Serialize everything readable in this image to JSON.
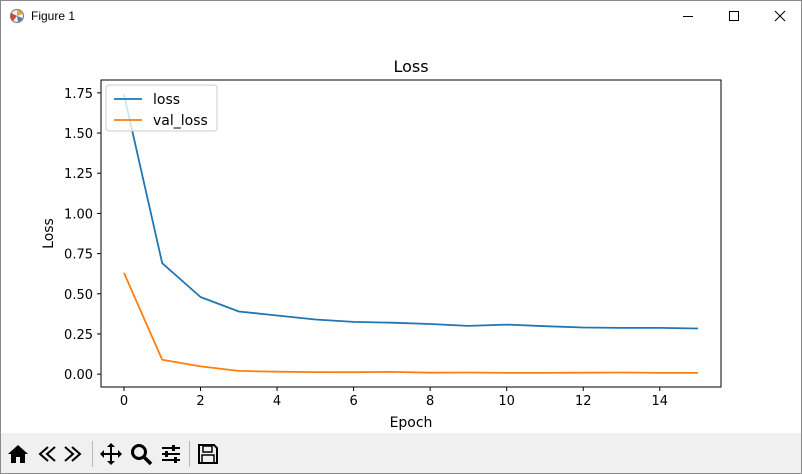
{
  "window": {
    "title": "Figure 1",
    "controls": {
      "minimize": "minimize-icon",
      "maximize": "maximize-icon",
      "close": "close-icon"
    }
  },
  "toolbar": {
    "buttons": [
      {
        "name": "home-button",
        "icon": "home-icon"
      },
      {
        "name": "back-button",
        "icon": "back-arrow-icon"
      },
      {
        "name": "forward-button",
        "icon": "forward-arrow-icon"
      },
      {
        "name": "pan-button",
        "icon": "move-icon"
      },
      {
        "name": "zoom-button",
        "icon": "zoom-icon"
      },
      {
        "name": "configure-subplots-button",
        "icon": "sliders-icon"
      },
      {
        "name": "save-button",
        "icon": "save-icon"
      }
    ]
  },
  "chart_data": {
    "type": "line",
    "title": "Loss",
    "xlabel": "Epoch",
    "ylabel": "Loss",
    "xlim": [
      -0.6,
      15.6
    ],
    "ylim": [
      -0.08,
      1.83
    ],
    "xticks": [
      0,
      2,
      4,
      6,
      8,
      10,
      12,
      14
    ],
    "xtick_labels": [
      "0",
      "2",
      "4",
      "6",
      "8",
      "10",
      "12",
      "14"
    ],
    "yticks": [
      0.0,
      0.25,
      0.5,
      0.75,
      1.0,
      1.25,
      1.5,
      1.75
    ],
    "ytick_labels": [
      "0.00",
      "0.25",
      "0.50",
      "0.75",
      "1.00",
      "1.25",
      "1.50",
      "1.75"
    ],
    "grid": false,
    "legend_position": "upper left",
    "x": [
      0,
      1,
      2,
      3,
      4,
      5,
      6,
      7,
      8,
      9,
      10,
      11,
      12,
      13,
      14,
      15
    ],
    "series": [
      {
        "name": "loss",
        "color": "#1f77b4",
        "values": [
          1.74,
          0.69,
          0.48,
          0.39,
          0.365,
          0.34,
          0.325,
          0.32,
          0.312,
          0.3,
          0.308,
          0.298,
          0.29,
          0.288,
          0.288,
          0.284
        ]
      },
      {
        "name": "val_loss",
        "color": "#ff7f0e",
        "values": [
          0.63,
          0.09,
          0.048,
          0.02,
          0.015,
          0.013,
          0.012,
          0.014,
          0.009,
          0.01,
          0.008,
          0.008,
          0.009,
          0.01,
          0.008,
          0.008
        ]
      }
    ]
  }
}
